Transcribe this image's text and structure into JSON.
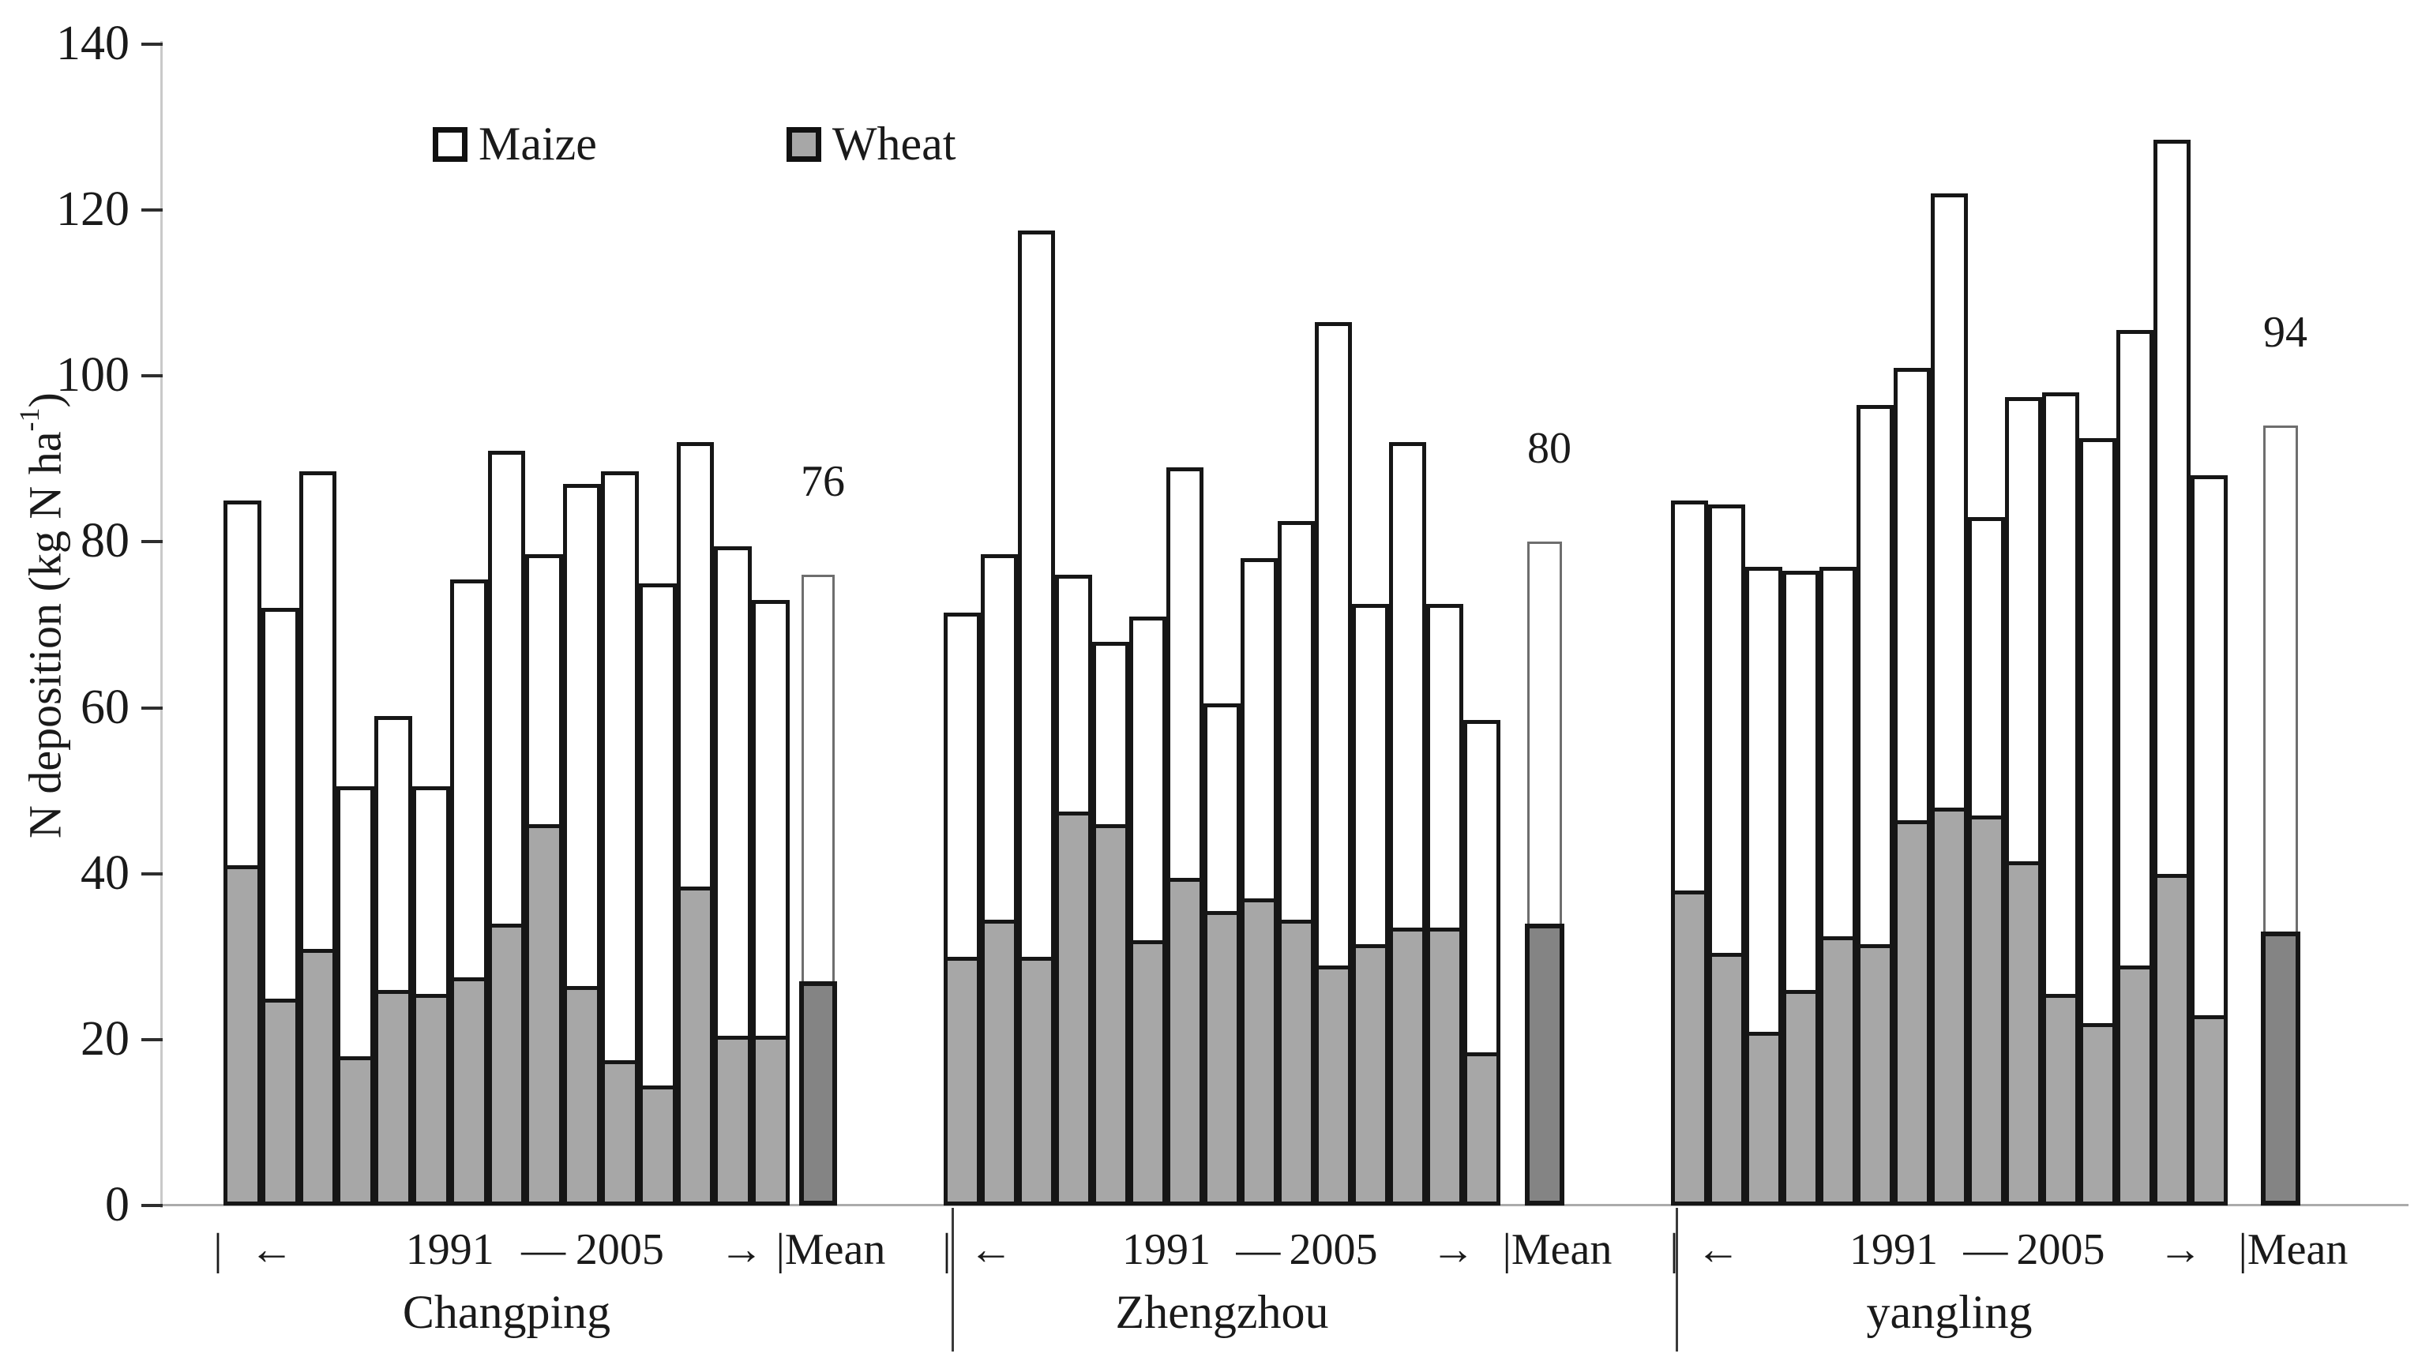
{
  "figure": {
    "ylabel": {
      "main": "N deposition (kg N ha",
      "sup": "-1",
      "close": ")"
    },
    "legend": {
      "maize": "Maize",
      "wheat": "Wheat"
    },
    "axis_annotation": {
      "start_tick": "|",
      "left_arrow": "←",
      "start_year": "1991",
      "dash": "—",
      "end_year": "2005",
      "right_arrow": "→",
      "mean_label": "|Mean"
    }
  },
  "chart_data": {
    "type": "bar",
    "stacked": true,
    "title": "",
    "xlabel": "",
    "ylabel": "N deposition (kg N ha⁻¹)",
    "ylim": [
      0,
      140
    ],
    "yticks": [
      0,
      20,
      40,
      60,
      80,
      100,
      120,
      140
    ],
    "grid": false,
    "legend": [
      "Maize",
      "Wheat"
    ],
    "legend_position": "top-inside",
    "x_period": {
      "from": "1991",
      "to": "2005"
    },
    "note": "Each site shows 15 annual stacked bars (Wheat gray bottom segment, Maize white top segment) for 1991-2005, followed by a Mean bar; maize value = total - wheat",
    "sites": [
      {
        "name": "Changping",
        "mean_total": 76,
        "mean_wheat": 27,
        "total": [
          85,
          72,
          88.5,
          50.5,
          59,
          50.5,
          75.5,
          91,
          78.5,
          87,
          88.5,
          75,
          92,
          79.5,
          73
        ],
        "wheat": [
          40.5,
          24.5,
          30.5,
          17.5,
          25.5,
          25,
          27,
          33.5,
          45.5,
          26,
          17,
          14,
          38,
          20,
          20
        ]
      },
      {
        "name": "Zhengzhou",
        "mean_total": 80,
        "mean_wheat": 34,
        "total": [
          71.5,
          78.5,
          117.5,
          76,
          68,
          71,
          89,
          60.5,
          78,
          82.5,
          106.5,
          72.5,
          92,
          72.5,
          58.5
        ],
        "wheat": [
          29.5,
          34,
          29.5,
          47,
          45.5,
          31.5,
          39,
          35,
          36.5,
          34,
          28.5,
          31,
          33,
          33,
          18
        ]
      },
      {
        "name": "yangling",
        "mean_total": 94,
        "mean_wheat": 33,
        "total": [
          85,
          84.5,
          77,
          76.5,
          77,
          96.5,
          101,
          122,
          83,
          97.5,
          98,
          92.5,
          105.5,
          128.5,
          88
        ],
        "wheat": [
          37.5,
          30,
          20.5,
          25.5,
          32,
          31,
          46,
          47.5,
          46.5,
          41,
          25,
          21.5,
          28.5,
          39.5,
          22.5
        ]
      }
    ],
    "colors": {
      "maize_fill": "#ffffff",
      "wheat_fill": "#a7a7a7",
      "mean_wheat_fill": "#848484",
      "bar_border": "#161616",
      "mean_maize_border": "#6e6e6e",
      "text": "#1a1a1a"
    }
  }
}
